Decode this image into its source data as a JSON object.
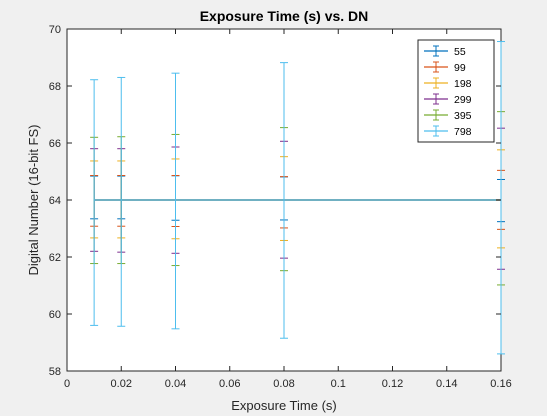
{
  "chart_data": {
    "type": "line",
    "title": "Exposure Time (s) vs. DN",
    "xlabel": "Exposure Time (s)",
    "ylabel": "Digital Number (16-bit FS)",
    "xlim": [
      0,
      0.16
    ],
    "ylim": [
      58,
      70
    ],
    "xticks": [
      0,
      0.02,
      0.04,
      0.06,
      0.08,
      0.1,
      0.12,
      0.14,
      0.16
    ],
    "xtick_labels": [
      "0",
      "0.02",
      "0.04",
      "0.06",
      "0.08",
      "0.1",
      "0.12",
      "0.14",
      "0.16"
    ],
    "yticks": [
      58,
      60,
      62,
      64,
      66,
      68,
      70
    ],
    "ytick_labels": [
      "58",
      "60",
      "62",
      "64",
      "66",
      "68",
      "70"
    ],
    "grid": false,
    "legend_position": "top-right",
    "x": [
      0.01,
      0.02,
      0.04,
      0.08,
      0.16
    ],
    "series": [
      {
        "name": "55",
        "color": "#0072bd",
        "values": [
          64.0,
          64.0,
          64.0,
          64.0,
          64.0
        ],
        "err_low": [
          0.66,
          0.66,
          0.71,
          0.7,
          0.76
        ],
        "err_high": [
          0.84,
          0.84,
          0.85,
          0.81,
          0.72
        ]
      },
      {
        "name": "99",
        "color": "#d95319",
        "values": [
          64.0,
          64.0,
          64.0,
          64.0,
          64.0
        ],
        "err_low": [
          0.92,
          0.92,
          0.93,
          0.98,
          1.03
        ],
        "err_high": [
          0.86,
          0.86,
          0.86,
          0.82,
          1.04
        ]
      },
      {
        "name": "198",
        "color": "#edb120",
        "values": [
          64.0,
          64.0,
          64.0,
          64.0,
          64.0
        ],
        "err_low": [
          1.33,
          1.33,
          1.36,
          1.42,
          1.68
        ],
        "err_high": [
          1.37,
          1.37,
          1.44,
          1.52,
          1.76
        ]
      },
      {
        "name": "299",
        "color": "#7e2f8e",
        "values": [
          64.0,
          64.0,
          64.0,
          64.0,
          64.0
        ],
        "err_low": [
          1.8,
          1.83,
          1.87,
          2.04,
          2.43
        ],
        "err_high": [
          1.8,
          1.8,
          1.86,
          2.06,
          2.52
        ]
      },
      {
        "name": "395",
        "color": "#77ac30",
        "values": [
          64.0,
          64.0,
          64.0,
          64.0,
          64.0
        ],
        "err_low": [
          2.23,
          2.23,
          2.3,
          2.48,
          2.98
        ],
        "err_high": [
          2.2,
          2.22,
          2.3,
          2.54,
          3.1
        ]
      },
      {
        "name": "798",
        "color": "#4dbeee",
        "values": [
          64.0,
          64.0,
          64.0,
          64.0,
          64.0
        ],
        "err_low": [
          4.4,
          4.43,
          4.52,
          4.85,
          5.4
        ],
        "err_high": [
          4.22,
          4.3,
          4.45,
          4.82,
          5.56
        ]
      }
    ]
  }
}
